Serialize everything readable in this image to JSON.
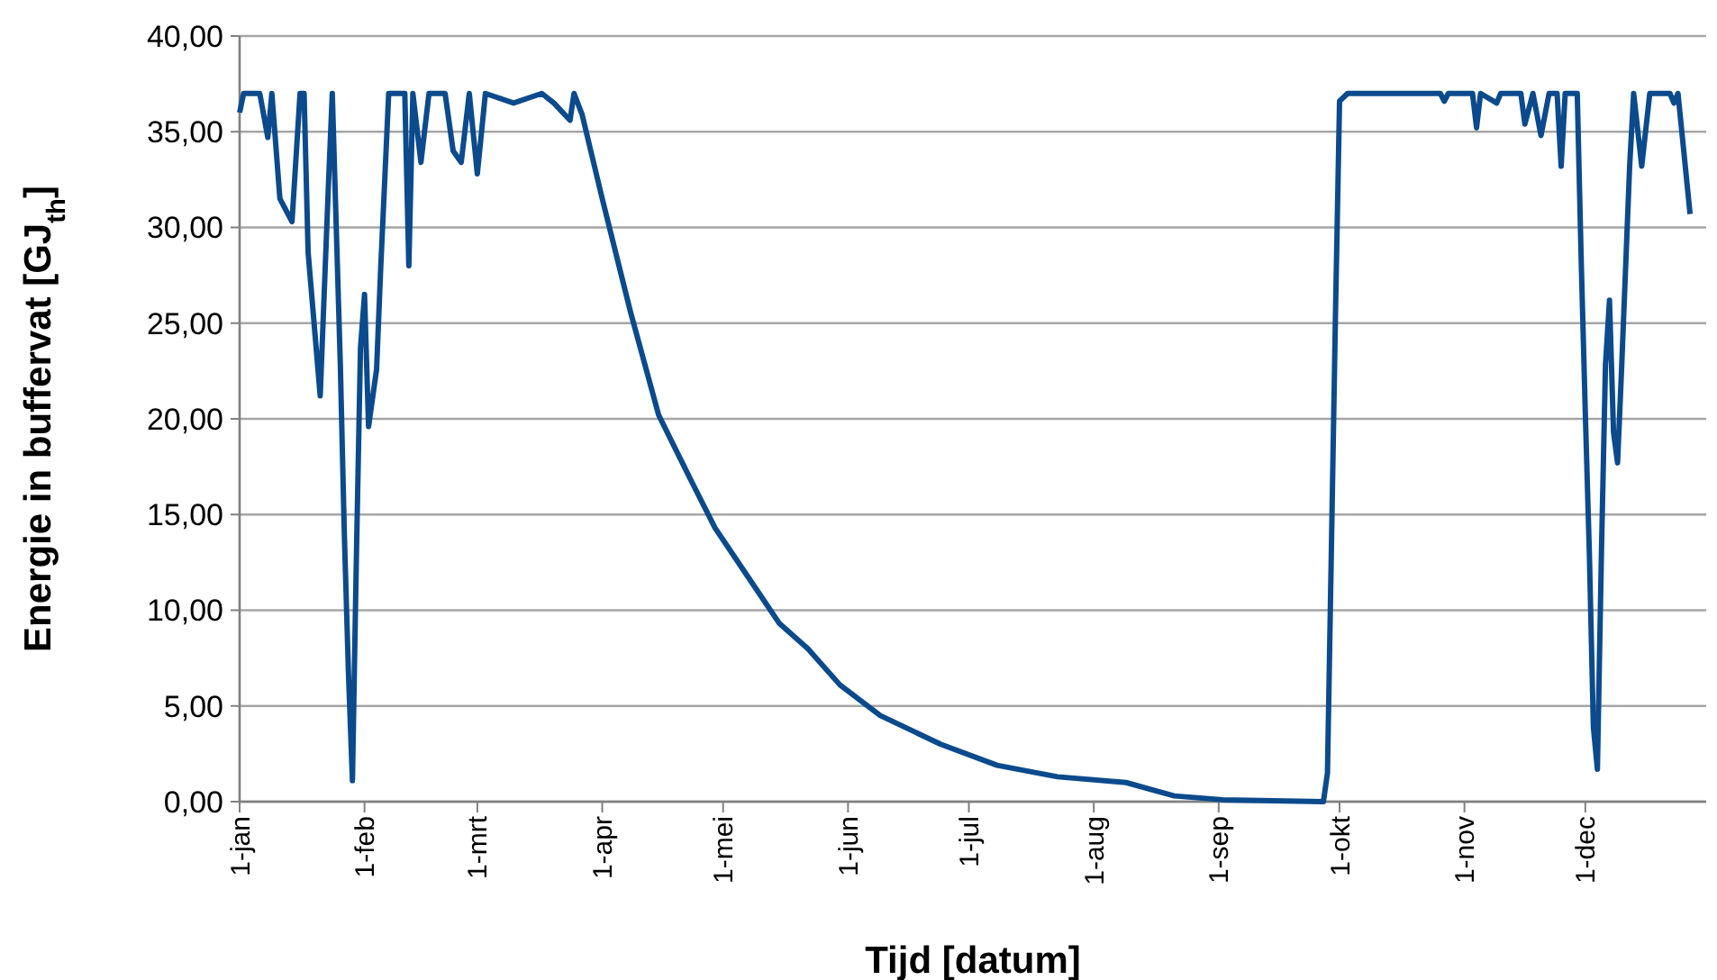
{
  "chart_data": {
    "type": "line",
    "xlabel": "Tijd [datum]",
    "ylabel": "Energie in buffervat [GJ$_{th}$]",
    "xlim": [
      "--01-01",
      "--12-31"
    ],
    "xticks": [
      {
        "value": "--01-01",
        "label": "1-jan"
      },
      {
        "value": "--02-01",
        "label": "1-feb"
      },
      {
        "value": "--03-01",
        "label": "1-mrt"
      },
      {
        "value": "--04-01",
        "label": "1-apr"
      },
      {
        "value": "--05-01",
        "label": "1-mei"
      },
      {
        "value": "--06-01",
        "label": "1-jun"
      },
      {
        "value": "--07-01",
        "label": "1-jul"
      },
      {
        "value": "--08-01",
        "label": "1-aug"
      },
      {
        "value": "--09-01",
        "label": "1-sep"
      },
      {
        "value": "--10-01",
        "label": "1-okt"
      },
      {
        "value": "--11-01",
        "label": "1-nov"
      },
      {
        "value": "--12-01",
        "label": "1-dec"
      }
    ],
    "ylim": [
      0,
      40
    ],
    "yticks": [
      {
        "value": 0,
        "label": "0,00"
      },
      {
        "value": 5,
        "label": "5,00"
      },
      {
        "value": 10,
        "label": "10,00"
      },
      {
        "value": 15,
        "label": "15,00"
      },
      {
        "value": 20,
        "label": "20,00"
      },
      {
        "value": 25,
        "label": "25,00"
      },
      {
        "value": 30,
        "label": "30,00"
      },
      {
        "value": 35,
        "label": "35,00"
      },
      {
        "value": 40,
        "label": "40,00"
      }
    ],
    "grid": "y",
    "line_style": "solid",
    "x": [
      "--01-01",
      "--01-02",
      "--01-06",
      "--01-08",
      "--01-09",
      "--01-11",
      "--01-14",
      "--01-16",
      "--01-17",
      "--01-18",
      "--01-21",
      "--01-23",
      "--01-24",
      "--01-26",
      "--01-27",
      "--01-28",
      "--01-29",
      "--01-30",
      "--01-31",
      "--02-01",
      "--02-02",
      "--02-04",
      "--02-05",
      "--02-07",
      "--02-11",
      "--02-12",
      "--02-13",
      "--02-15",
      "--02-17",
      "--02-21",
      "--02-23",
      "--02-25",
      "--02-27",
      "--03-01",
      "--03-03",
      "--03-10",
      "--03-17",
      "--03-20",
      "--03-24",
      "--03-25",
      "--03-27",
      "--04-01",
      "--04-08",
      "--04-15",
      "--04-23",
      "--04-29",
      "--05-07",
      "--05-15",
      "--05-22",
      "--05-30",
      "--06-09",
      "--06-24",
      "--07-08",
      "--07-23",
      "--08-09",
      "--08-21",
      "--09-02",
      "--09-27",
      "--09-28",
      "--09-29",
      "--09-30",
      "--10-01",
      "--10-03",
      "--10-26",
      "--10-27",
      "--10-28",
      "--11-03",
      "--11-04",
      "--11-05",
      "--11-09",
      "--11-10",
      "--11-15",
      "--11-16",
      "--11-18",
      "--11-20",
      "--11-22",
      "--11-24",
      "--11-25",
      "--11-26",
      "--11-29",
      "--11-30",
      "--12-01",
      "--12-02",
      "--12-03",
      "--12-04",
      "--12-05",
      "--12-06",
      "--12-07",
      "--12-08",
      "--12-09",
      "--12-10",
      "--12-12",
      "--12-13",
      "--12-15",
      "--12-17",
      "--12-22",
      "--12-23",
      "--12-24",
      "--12-27"
    ],
    "series": [
      {
        "color": "#0b4a8c",
        "values": [
          36.0,
          37.0,
          37.0,
          34.7,
          37.0,
          31.5,
          30.3,
          37.0,
          37.0,
          28.7,
          21.2,
          32.0,
          37.0,
          22.8,
          13.9,
          6.8,
          1.1,
          13.0,
          23.7,
          26.5,
          19.6,
          22.6,
          27.8,
          37.0,
          37.0,
          28.0,
          37.0,
          33.4,
          37.0,
          37.0,
          34.0,
          33.4,
          37.0,
          32.8,
          37.0,
          36.5,
          37.0,
          36.5,
          35.6,
          37.0,
          35.9,
          31.5,
          25.6,
          20.2,
          16.8,
          14.3,
          11.8,
          9.3,
          8.0,
          6.1,
          4.5,
          3.0,
          1.9,
          1.3,
          1.0,
          0.3,
          0.1,
          0,
          1.5,
          13.5,
          25.6,
          36.6,
          37.0,
          37.0,
          36.6,
          37.0,
          37.0,
          35.2,
          37.0,
          36.5,
          37.0,
          37.0,
          35.4,
          37.0,
          34.8,
          37.0,
          37.0,
          33.2,
          37.0,
          37.0,
          28.1,
          20.3,
          13.0,
          3.9,
          1.7,
          13.0,
          22.8,
          26.2,
          19.3,
          17.7,
          22.6,
          33.2,
          37.0,
          33.2,
          37.0,
          37.0,
          36.5,
          37.0,
          30.7
        ]
      }
    ]
  }
}
